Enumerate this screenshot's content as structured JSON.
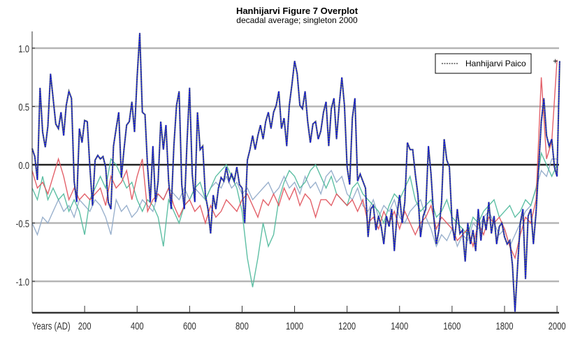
{
  "chart_data": {
    "type": "line",
    "title": "Hanhijarvi Figure 7 Overplot",
    "subtitle": "decadal average; singleton 2000",
    "xlabel": "Years (AD)",
    "ylabel": "",
    "xlim": [
      0,
      2010
    ],
    "ylim": [
      -1.27,
      1.14
    ],
    "xticks": [
      200,
      400,
      600,
      800,
      1000,
      1200,
      1400,
      1600,
      1800,
      2000
    ],
    "yticks": [
      1.0,
      0.5,
      0.0,
      -0.5,
      -1.0
    ],
    "ytick_labels": [
      "1.0",
      "0.5",
      "0.0",
      "-0.5",
      "-1.0"
    ],
    "grid": "horizontal",
    "legend": {
      "placement": "top-right",
      "entries": [
        "Hanhijarvi Paico"
      ]
    },
    "series": [
      {
        "name": "Hanhijarvi Paico",
        "color": "#0000ff",
        "style": "dotted over dark line",
        "step": 10,
        "values": [
          0.14,
          0.07,
          -0.13,
          0.66,
          0.28,
          0.15,
          0.33,
          0.78,
          0.57,
          0.35,
          0.31,
          0.45,
          0.25,
          0.51,
          0.63,
          0.57,
          -0.14,
          -0.32,
          0.31,
          0.19,
          0.38,
          0.37,
          -0.02,
          -0.35,
          0.04,
          0.08,
          0.05,
          0.07,
          -0.02,
          -0.32,
          -0.38,
          0.16,
          0.31,
          0.45,
          -0.11,
          0.13,
          0.34,
          0.37,
          0.54,
          0.28,
          0.75,
          1.13,
          0.45,
          0.43,
          -0.02,
          -0.32,
          0.16,
          -0.32,
          -0.14,
          0.37,
          0.13,
          0.34,
          -0.14,
          -0.38,
          0.16,
          0.51,
          0.63,
          -0.17,
          -0.38,
          0.19,
          0.66,
          -0.08,
          -0.32,
          0.45,
          0.13,
          0.16,
          -0.26,
          -0.38,
          -0.59,
          -0.26,
          -0.38,
          -0.2,
          -0.11,
          -0.14,
          -0.02,
          -0.14,
          -0.08,
          -0.14,
          -0.02,
          -0.17,
          -0.2,
          -0.5,
          0.04,
          0.13,
          0.25,
          0.13,
          0.25,
          0.34,
          0.22,
          0.37,
          0.45,
          0.31,
          0.45,
          0.51,
          0.63,
          0.31,
          0.4,
          0.16,
          0.51,
          0.69,
          0.89,
          0.78,
          0.51,
          0.48,
          0.63,
          0.37,
          0.19,
          0.35,
          0.37,
          0.22,
          0.29,
          0.45,
          0.54,
          0.16,
          0.48,
          0.57,
          0.22,
          0.51,
          0.75,
          0.51,
          -0.02,
          -0.17,
          0.4,
          0.57,
          -0.14,
          -0.08,
          -0.14,
          -0.2,
          -0.62,
          -0.38,
          -0.35,
          -0.56,
          -0.44,
          -0.53,
          -0.68,
          -0.44,
          -0.53,
          -0.38,
          -0.74,
          -0.44,
          -0.26,
          -0.5,
          -0.32,
          0.19,
          0.13,
          0.13,
          -0.08,
          -0.26,
          -0.62,
          -0.44,
          -0.38,
          0.16,
          -0.08,
          -0.44,
          -0.68,
          -0.56,
          -0.32,
          0.22,
          0.04,
          -0.02,
          -0.5,
          -0.65,
          -0.38,
          -0.59,
          -0.56,
          -0.83,
          -0.5,
          -0.68,
          -0.56,
          -0.74,
          -0.38,
          -0.65,
          -0.44,
          -0.56,
          -0.32,
          -0.59,
          -0.44,
          -0.68,
          -0.53,
          -0.5,
          -0.62,
          -0.68,
          -0.65,
          -0.86,
          -1.26,
          -0.86,
          -0.5,
          -0.38,
          -0.98,
          -0.44,
          -0.38,
          -0.68,
          -0.41,
          -0.02,
          0.37,
          0.57,
          0.25,
          0.16,
          0.22,
          -0.02,
          -0.1,
          0.89
        ]
      },
      {
        "color": "#e0505a",
        "step": 20,
        "values": [
          -0.05,
          -0.2,
          -0.15,
          -0.25,
          -0.1,
          0.05,
          -0.1,
          -0.3,
          -0.2,
          -0.3,
          -0.25,
          -0.3,
          -0.25,
          -0.2,
          -0.35,
          -0.1,
          -0.2,
          -0.15,
          -0.05,
          -0.3,
          -0.1,
          0.05,
          -0.4,
          -0.3,
          -0.25,
          -0.3,
          -0.2,
          -0.35,
          -0.45,
          -0.35,
          -0.3,
          -0.4,
          -0.35,
          -0.5,
          -0.35,
          -0.45,
          -0.4,
          -0.3,
          -0.35,
          -0.4,
          -0.3,
          -0.25,
          -0.35,
          -0.45,
          -0.3,
          -0.35,
          -0.25,
          -0.35,
          -0.2,
          -0.3,
          -0.2,
          -0.35,
          -0.25,
          -0.3,
          -0.45,
          -0.3,
          -0.3,
          -0.35,
          -0.25,
          -0.3,
          -0.35,
          -0.3,
          -0.4,
          -0.3,
          -0.5,
          -0.45,
          -0.55,
          -0.4,
          -0.5,
          -0.4,
          -0.55,
          -0.4,
          -0.5,
          -0.6,
          -0.5,
          -0.45,
          -0.35,
          -0.55,
          -0.45,
          -0.5,
          -0.55,
          -0.65,
          -0.6,
          -0.55,
          -0.7,
          -0.5,
          -0.6,
          -0.45,
          -0.5,
          -0.45,
          -0.55,
          -0.7,
          -0.8,
          -0.6,
          -0.45,
          -0.5,
          -0.3,
          0.75,
          0.05,
          0.2,
          0.9
        ]
      },
      {
        "color": "#4db89a",
        "step": 20,
        "values": [
          -0.2,
          -0.3,
          -0.1,
          -0.3,
          -0.2,
          -0.3,
          -0.25,
          -0.4,
          -0.3,
          -0.4,
          -0.6,
          -0.3,
          -0.2,
          -0.1,
          -0.2,
          0.05,
          0.0,
          -0.1,
          -0.2,
          -0.15,
          -0.3,
          -0.4,
          -0.3,
          -0.35,
          -0.45,
          -0.7,
          -0.3,
          -0.4,
          -0.5,
          -0.35,
          -0.3,
          -0.2,
          -0.15,
          -0.3,
          -0.2,
          -0.1,
          -0.05,
          0.0,
          -0.1,
          -0.2,
          -0.4,
          -0.8,
          -1.05,
          -0.8,
          -0.5,
          -0.7,
          -0.6,
          -0.3,
          -0.15,
          -0.05,
          -0.1,
          -0.2,
          -0.15,
          -0.05,
          0.0,
          -0.1,
          -0.2,
          -0.1,
          -0.25,
          -0.3,
          -0.35,
          -0.2,
          -0.15,
          -0.25,
          -0.3,
          -0.35,
          -0.4,
          -0.5,
          -0.35,
          -0.25,
          -0.3,
          -0.2,
          -0.1,
          -0.3,
          -0.4,
          -0.35,
          -0.3,
          -0.45,
          -0.4,
          -0.3,
          -0.45,
          -0.5,
          -0.55,
          -0.6,
          -0.45,
          -0.5,
          -0.4,
          -0.35,
          -0.3,
          -0.45,
          -0.4,
          -0.35,
          -0.45,
          -0.4,
          -0.3,
          -0.35,
          -0.2,
          0.1,
          0.0,
          -0.1,
          0.0
        ]
      },
      {
        "color": "#8fa8c8",
        "step": 20,
        "values": [
          -0.5,
          -0.6,
          -0.45,
          -0.5,
          -0.4,
          -0.3,
          -0.4,
          -0.35,
          -0.45,
          -0.3,
          -0.35,
          -0.4,
          -0.3,
          -0.35,
          -0.45,
          -0.6,
          -0.3,
          -0.4,
          -0.35,
          -0.45,
          -0.4,
          -0.3,
          -0.35,
          -0.4,
          -0.25,
          -0.3,
          -0.2,
          -0.25,
          -0.3,
          -0.2,
          -0.3,
          -0.2,
          -0.25,
          -0.3,
          -0.2,
          -0.15,
          -0.2,
          -0.1,
          -0.2,
          -0.15,
          -0.25,
          -0.2,
          -0.3,
          -0.25,
          -0.2,
          -0.15,
          -0.25,
          -0.2,
          -0.1,
          -0.2,
          -0.15,
          -0.25,
          -0.1,
          -0.2,
          -0.15,
          -0.25,
          -0.1,
          -0.05,
          -0.15,
          -0.1,
          -0.25,
          -0.3,
          -0.2,
          -0.35,
          -0.4,
          -0.3,
          -0.45,
          -0.35,
          -0.4,
          -0.3,
          -0.45,
          -0.5,
          -0.4,
          -0.35,
          -0.3,
          -0.45,
          -0.55,
          -0.7,
          -0.6,
          -0.65,
          -0.55,
          -0.7,
          -0.6,
          -0.65,
          -0.5,
          -0.55,
          -0.45,
          -0.4,
          -0.5,
          -0.6,
          -0.55,
          -0.7,
          -0.6,
          -0.5,
          -0.4,
          -0.35,
          -0.2,
          -0.05,
          -0.1,
          0.05,
          0.05
        ]
      }
    ]
  }
}
